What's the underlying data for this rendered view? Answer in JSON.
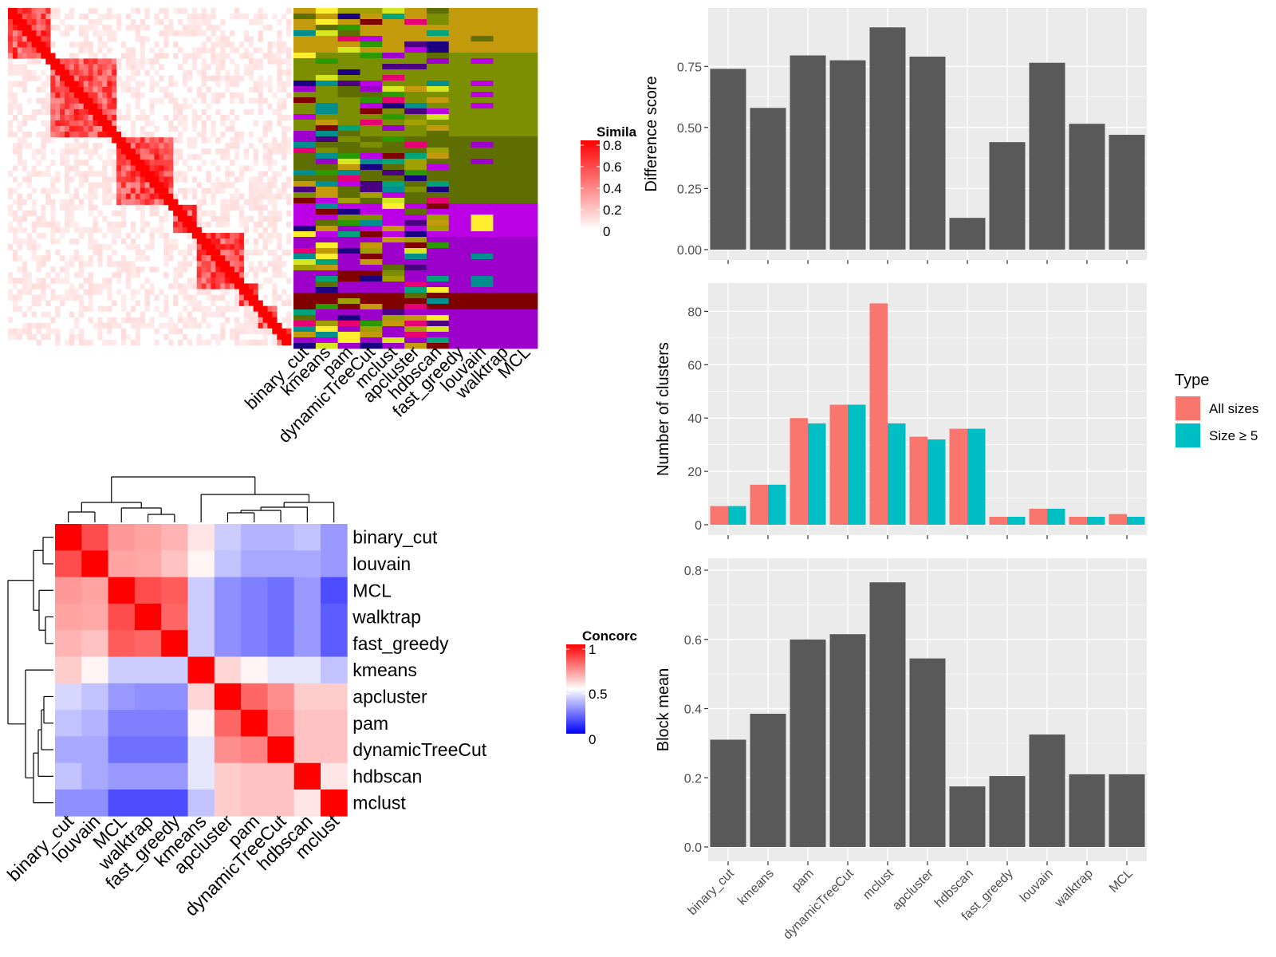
{
  "colors": {
    "panel_bg": "#EBEBEB",
    "grid": "#FFFFFF",
    "bar_gray": "#595959",
    "all_sizes": "#F8766D",
    "size_ge5": "#00BFC4",
    "similarity_low": "#FFFFFF",
    "similarity_high": "#FF0000",
    "concordance_low": "#0000FF",
    "concordance_mid": "#FFFFFF",
    "concordance_high": "#FF0000"
  },
  "similarity_legend": {
    "title": "Simila",
    "ticks": [
      "0.8",
      "0.6",
      "0.4",
      "0.2",
      "0"
    ]
  },
  "concordance_legend": {
    "title": "Concorc",
    "ticks": [
      "1",
      "0.5",
      "0"
    ]
  },
  "membership_columns": [
    "binary_cut",
    "kmeans",
    "pam",
    "dynamicTreeCut",
    "mclust",
    "apcluster",
    "hdbscan",
    "fast_greedy",
    "louvain",
    "walktrap",
    "MCL"
  ],
  "membership_palette": [
    "#C49A0D",
    "#7B8F00",
    "#5E6E00",
    "#BB00E6",
    "#9E00CC",
    "#FFEE2E",
    "#008E8E",
    "#1A0080",
    "#E60073",
    "#2B9900",
    "#800000",
    "#D6E620",
    "#4B0082",
    "#A0A000",
    "#00A37A"
  ],
  "chart_data": [
    {
      "type": "heatmap",
      "name": "similarity",
      "legend_title": "Simila",
      "value_range": [
        0,
        0.8
      ]
    },
    {
      "type": "heatmap",
      "name": "cluster-membership",
      "columns": [
        "binary_cut",
        "kmeans",
        "pam",
        "dynamicTreeCut",
        "mclust",
        "apcluster",
        "hdbscan",
        "fast_greedy",
        "louvain",
        "walktrap",
        "MCL"
      ]
    },
    {
      "type": "heatmap",
      "name": "concordance",
      "legend_title": "Concorc",
      "rows": [
        "binary_cut",
        "louvain",
        "MCL",
        "walktrap",
        "fast_greedy",
        "kmeans",
        "apcluster",
        "pam",
        "dynamicTreeCut",
        "hdbscan",
        "mclust"
      ],
      "columns": [
        "binary_cut",
        "louvain",
        "MCL",
        "walktrap",
        "fast_greedy",
        "kmeans",
        "apcluster",
        "pam",
        "dynamicTreeCut",
        "hdbscan",
        "mclust"
      ],
      "value_range": [
        0,
        1
      ],
      "values": [
        [
          1.0,
          0.85,
          0.7,
          0.68,
          0.65,
          0.55,
          0.4,
          0.35,
          0.35,
          0.38,
          0.3
        ],
        [
          0.85,
          1.0,
          0.68,
          0.67,
          0.62,
          0.52,
          0.38,
          0.33,
          0.33,
          0.33,
          0.3
        ],
        [
          0.7,
          0.68,
          1.0,
          0.85,
          0.82,
          0.4,
          0.28,
          0.25,
          0.22,
          0.3,
          0.15
        ],
        [
          0.68,
          0.67,
          0.85,
          1.0,
          0.8,
          0.4,
          0.28,
          0.25,
          0.22,
          0.3,
          0.18
        ],
        [
          0.65,
          0.62,
          0.82,
          0.8,
          1.0,
          0.4,
          0.28,
          0.25,
          0.22,
          0.3,
          0.18
        ],
        [
          0.6,
          0.52,
          0.4,
          0.4,
          0.4,
          1.0,
          0.58,
          0.52,
          0.45,
          0.45,
          0.38
        ],
        [
          0.42,
          0.38,
          0.3,
          0.28,
          0.28,
          0.58,
          1.0,
          0.8,
          0.72,
          0.6,
          0.6
        ],
        [
          0.38,
          0.35,
          0.25,
          0.25,
          0.25,
          0.52,
          0.8,
          1.0,
          0.75,
          0.62,
          0.62
        ],
        [
          0.33,
          0.33,
          0.22,
          0.22,
          0.22,
          0.45,
          0.72,
          0.75,
          1.0,
          0.62,
          0.62
        ],
        [
          0.38,
          0.33,
          0.3,
          0.3,
          0.3,
          0.45,
          0.6,
          0.62,
          0.62,
          1.0,
          0.55
        ],
        [
          0.28,
          0.28,
          0.15,
          0.15,
          0.15,
          0.38,
          0.6,
          0.62,
          0.62,
          0.55,
          1.0
        ]
      ]
    },
    {
      "type": "bar",
      "name": "difference-score",
      "categories": [
        "binary_cut",
        "kmeans",
        "pam",
        "dynamicTreeCut",
        "mclust",
        "apcluster",
        "hdbscan",
        "fast_greedy",
        "louvain",
        "walktrap",
        "MCL"
      ],
      "values": [
        0.74,
        0.58,
        0.795,
        0.775,
        0.91,
        0.79,
        0.13,
        0.44,
        0.765,
        0.515,
        0.47
      ],
      "ylabel": "Difference score",
      "ylim": [
        0,
        0.95
      ],
      "yticks": [
        "0.00",
        "0.25",
        "0.50",
        "0.75"
      ],
      "grid": true
    },
    {
      "type": "bar",
      "name": "number-of-clusters",
      "categories": [
        "binary_cut",
        "kmeans",
        "pam",
        "dynamicTreeCut",
        "mclust",
        "apcluster",
        "hdbscan",
        "fast_greedy",
        "louvain",
        "walktrap",
        "MCL"
      ],
      "series": [
        {
          "name": "All sizes",
          "values": [
            7,
            15,
            40,
            45,
            83,
            33,
            36,
            3,
            6,
            3,
            4
          ]
        },
        {
          "name": "Size ≥ 5",
          "values": [
            7,
            15,
            38,
            45,
            38,
            32,
            36,
            3,
            6,
            3,
            3
          ]
        }
      ],
      "ylabel": "Number of clusters",
      "ylim": [
        0,
        87
      ],
      "yticks": [
        "0",
        "20",
        "40",
        "60",
        "80"
      ],
      "legend_title": "Type",
      "legend_position": "right",
      "grid": true
    },
    {
      "type": "bar",
      "name": "block-mean",
      "categories": [
        "binary_cut",
        "kmeans",
        "pam",
        "dynamicTreeCut",
        "mclust",
        "apcluster",
        "hdbscan",
        "fast_greedy",
        "louvain",
        "walktrap",
        "MCL"
      ],
      "values": [
        0.31,
        0.385,
        0.6,
        0.615,
        0.765,
        0.545,
        0.175,
        0.205,
        0.325,
        0.21,
        0.21
      ],
      "ylabel": "Block mean",
      "ylim": [
        0,
        0.8
      ],
      "yticks": [
        "0.0",
        "0.2",
        "0.4",
        "0.6",
        "0.8"
      ],
      "grid": true
    }
  ]
}
